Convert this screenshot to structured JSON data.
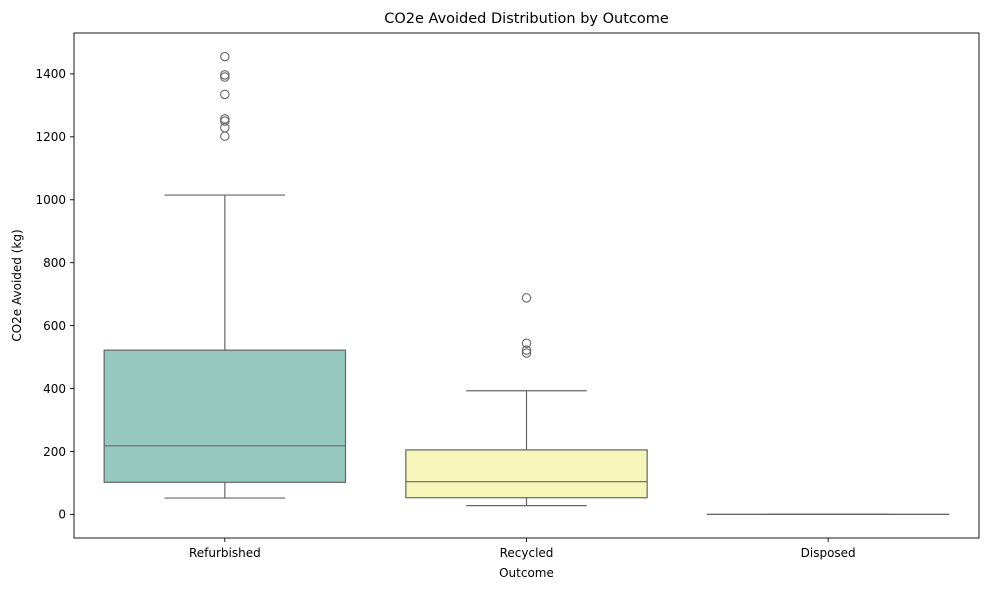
{
  "chart_data": {
    "type": "box",
    "title": "CO2e Avoided Distribution by Outcome",
    "xlabel": "Outcome",
    "ylabel": "CO2e Avoided (kg)",
    "ylim": [
      -75,
      1530
    ],
    "yticks": [
      0,
      200,
      400,
      600,
      800,
      1000,
      1200,
      1400
    ],
    "grid": false,
    "categories": [
      "Refurbished",
      "Recycled",
      "Disposed"
    ],
    "boxes": [
      {
        "category": "Refurbished",
        "color": "#96c8c0",
        "whisker_low": 52,
        "q1": 102,
        "median": 218,
        "q3": 522,
        "whisker_high": 1015,
        "outliers": [
          1202,
          1229,
          1250,
          1257,
          1335,
          1390,
          1397,
          1455
        ]
      },
      {
        "category": "Recycled",
        "color": "#f6f6bb",
        "whisker_low": 28,
        "q1": 53,
        "median": 104,
        "q3": 205,
        "whisker_high": 393,
        "outliers": [
          513,
          522,
          544,
          688
        ]
      },
      {
        "category": "Disposed",
        "color": "#c2c0da",
        "whisker_low": 0,
        "q1": 0,
        "median": 0,
        "q3": 0,
        "whisker_high": 0,
        "outliers": []
      }
    ]
  }
}
